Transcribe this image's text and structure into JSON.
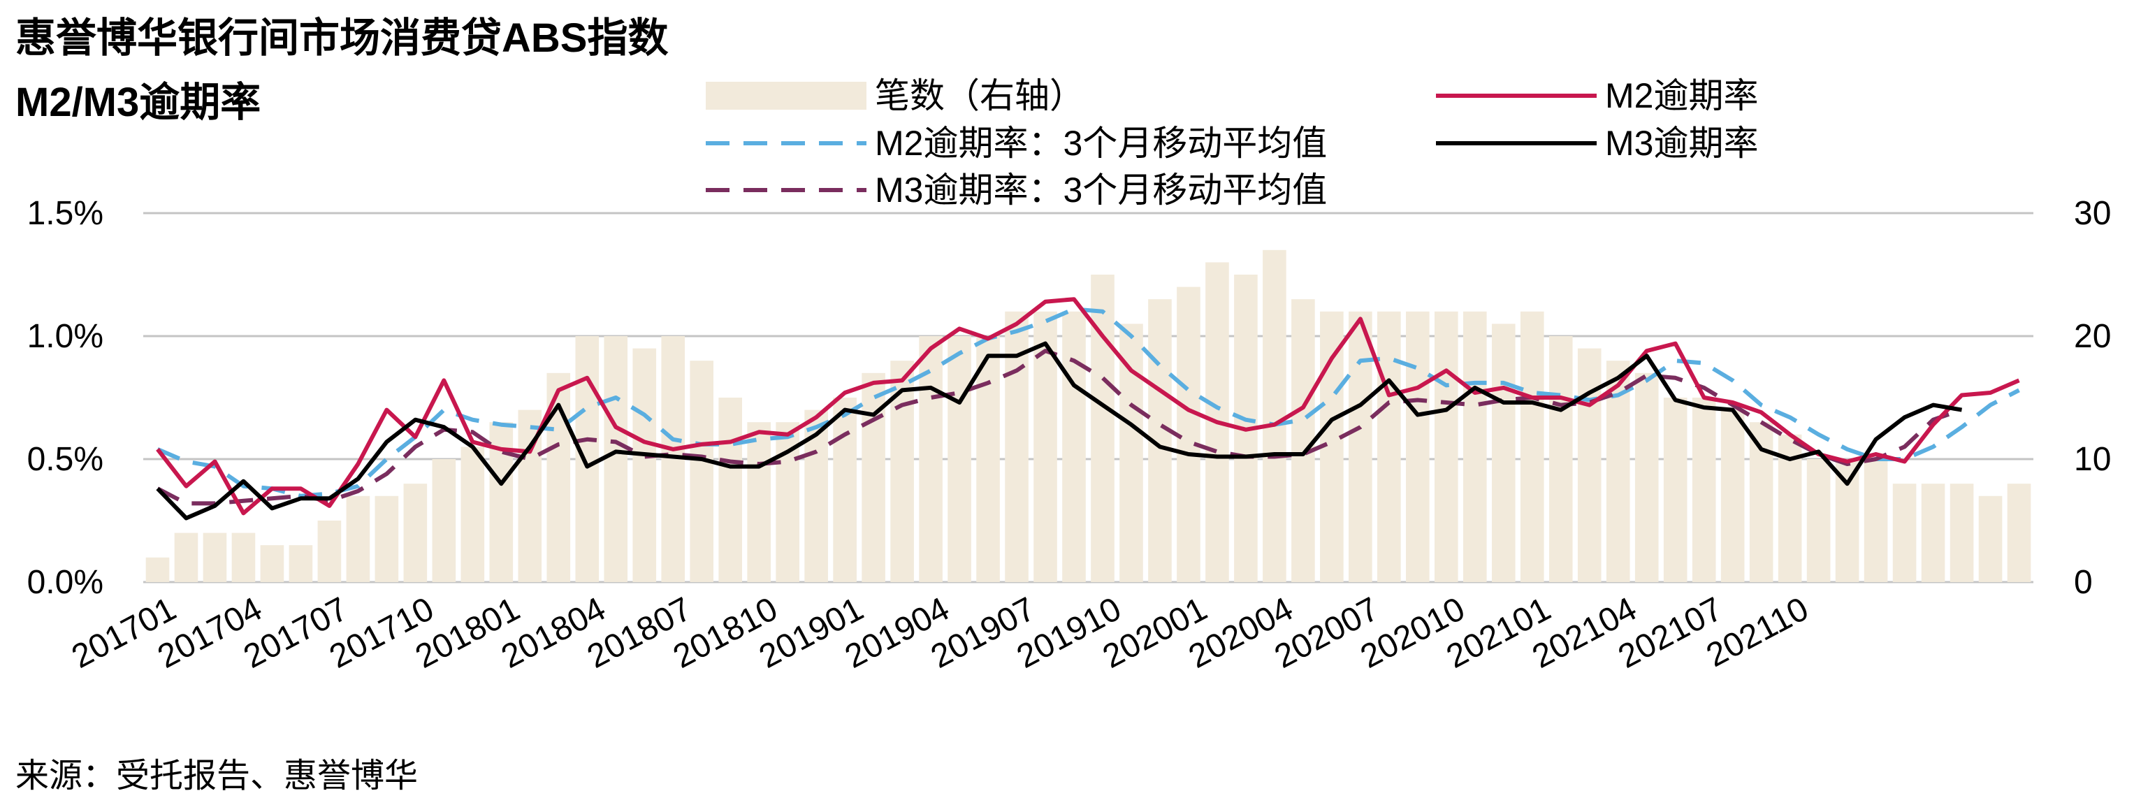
{
  "title": "惠誉博华银行间市场消费贷ABS指数",
  "subtitle": "M2/M3逾期率",
  "source": "来源：受托报告、惠誉博华",
  "chart_data": {
    "type": "bar",
    "x_tick_labels": [
      "201701",
      "201704",
      "201707",
      "201710",
      "201801",
      "201804",
      "201807",
      "201810",
      "201901",
      "201904",
      "201907",
      "201910",
      "202001",
      "202004",
      "202007",
      "202010",
      "202101",
      "202104",
      "202107",
      "202110"
    ],
    "y_left": {
      "range": [
        0,
        1.5
      ],
      "ticks": [
        "0.0%",
        "0.5%",
        "1.0%",
        "1.5%"
      ]
    },
    "y_right": {
      "range": [
        0,
        30
      ],
      "ticks": [
        "0",
        "10",
        "20",
        "30"
      ]
    },
    "grid": true,
    "legend_position": "top",
    "series": [
      {
        "name": "笔数（右轴）",
        "type": "bar",
        "axis": "right",
        "color": "#f2eadb",
        "values": [
          2,
          4,
          4,
          4,
          3,
          3,
          5,
          7,
          7,
          8,
          10,
          11,
          13,
          14,
          17,
          20,
          20,
          19,
          20,
          18,
          15,
          13,
          13,
          14,
          15,
          17,
          18,
          20,
          20,
          20,
          22,
          22,
          22,
          25,
          21,
          23,
          24,
          26,
          25,
          27,
          23,
          22,
          22,
          22,
          22,
          22,
          22,
          21,
          22,
          20,
          19,
          18,
          17,
          15,
          15,
          14,
          13,
          12,
          10,
          10,
          10,
          8,
          8,
          8,
          7,
          8
        ]
      },
      {
        "name": "M2逾期率",
        "type": "line",
        "axis": "left",
        "color": "#c8174e",
        "dash": "solid",
        "values": [
          0.54,
          0.39,
          0.49,
          0.28,
          0.38,
          0.38,
          0.31,
          0.48,
          0.7,
          0.59,
          0.82,
          0.57,
          0.54,
          0.53,
          0.78,
          0.83,
          0.63,
          0.57,
          0.54,
          0.56,
          0.57,
          0.61,
          0.6,
          0.67,
          0.77,
          0.81,
          0.82,
          0.95,
          1.03,
          0.99,
          1.05,
          1.14,
          1.15,
          1.0,
          0.86,
          0.78,
          0.7,
          0.65,
          0.62,
          0.64,
          0.71,
          0.91,
          1.07,
          0.76,
          0.79,
          0.86,
          0.77,
          0.79,
          0.75,
          0.75,
          0.72,
          0.8,
          0.94,
          0.97,
          0.75,
          0.73,
          0.69,
          0.6,
          0.52,
          0.49,
          0.52,
          0.49,
          0.64,
          0.76,
          0.77,
          0.82
        ]
      },
      {
        "name": "M3逾期率",
        "type": "line",
        "axis": "left",
        "color": "#000000",
        "dash": "solid",
        "values": [
          0.38,
          0.26,
          0.31,
          0.41,
          0.3,
          0.34,
          0.34,
          0.42,
          0.57,
          0.66,
          0.63,
          0.55,
          0.4,
          0.55,
          0.72,
          0.47,
          0.53,
          0.52,
          0.51,
          0.5,
          0.47,
          0.47,
          0.53,
          0.6,
          0.7,
          0.68,
          0.78,
          0.79,
          0.73,
          0.92,
          0.92,
          0.97,
          0.8,
          0.72,
          0.64,
          0.55,
          0.52,
          0.51,
          0.51,
          0.52,
          0.52,
          0.66,
          0.72,
          0.82,
          0.68,
          0.7,
          0.79,
          0.73,
          0.73,
          0.7,
          0.77,
          0.83,
          0.92,
          0.74,
          0.71,
          0.7,
          0.54,
          0.5,
          0.53,
          0.4,
          0.58,
          0.67,
          0.72,
          0.7
        ]
      },
      {
        "name": "M2逾期率：3个月移动平均值",
        "type": "line",
        "axis": "left",
        "color": "#5aaee0",
        "dash": "dashed",
        "values": [
          0.54,
          0.49,
          0.47,
          0.39,
          0.38,
          0.35,
          0.36,
          0.39,
          0.5,
          0.59,
          0.7,
          0.66,
          0.64,
          0.63,
          0.62,
          0.71,
          0.75,
          0.68,
          0.58,
          0.56,
          0.56,
          0.58,
          0.59,
          0.63,
          0.68,
          0.75,
          0.8,
          0.86,
          0.93,
          0.99,
          1.02,
          1.06,
          1.11,
          1.1,
          1.0,
          0.88,
          0.78,
          0.71,
          0.66,
          0.64,
          0.66,
          0.75,
          0.9,
          0.91,
          0.87,
          0.8,
          0.81,
          0.81,
          0.77,
          0.76,
          0.74,
          0.76,
          0.82,
          0.9,
          0.89,
          0.82,
          0.72,
          0.67,
          0.6,
          0.54,
          0.5,
          0.5,
          0.55,
          0.63,
          0.72,
          0.78
        ]
      },
      {
        "name": "M3逾期率：3个月移动平均值",
        "type": "line",
        "axis": "left",
        "color": "#7a2d5e",
        "dash": "dashed",
        "values": [
          0.38,
          0.32,
          0.32,
          0.33,
          0.34,
          0.35,
          0.33,
          0.37,
          0.44,
          0.55,
          0.62,
          0.61,
          0.53,
          0.5,
          0.56,
          0.58,
          0.57,
          0.51,
          0.52,
          0.51,
          0.49,
          0.48,
          0.49,
          0.53,
          0.6,
          0.66,
          0.72,
          0.75,
          0.77,
          0.81,
          0.86,
          0.94,
          0.9,
          0.83,
          0.72,
          0.64,
          0.57,
          0.53,
          0.51,
          0.51,
          0.52,
          0.57,
          0.63,
          0.73,
          0.74,
          0.73,
          0.72,
          0.74,
          0.75,
          0.72,
          0.73,
          0.77,
          0.84,
          0.83,
          0.79,
          0.72,
          0.65,
          0.58,
          0.52,
          0.48,
          0.5,
          0.55,
          0.66,
          0.7
        ]
      }
    ]
  }
}
